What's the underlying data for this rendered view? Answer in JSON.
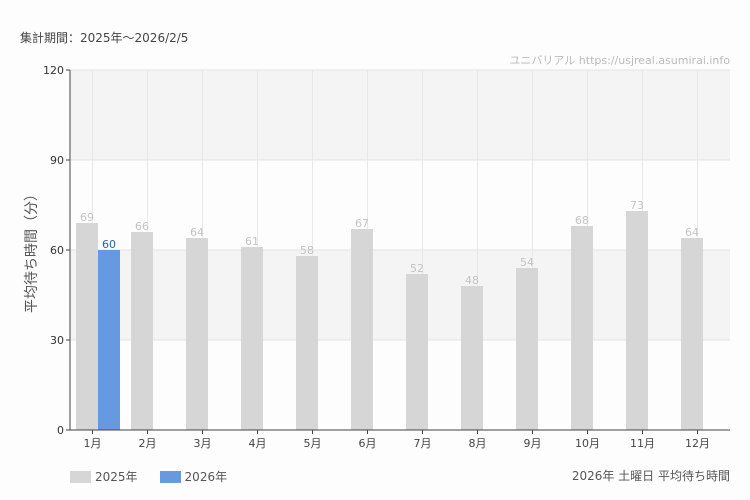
{
  "header": {
    "period": "集計期間：2025年～2026/2/5",
    "credit": "ユニバリアル https://usjreal.asumirai.info"
  },
  "footer": {
    "title": "2026年 土曜日 平均待ち時間"
  },
  "chart_data": {
    "type": "bar",
    "title": "2026年 土曜日 平均待ち時間",
    "ylabel": "平均待ち時間（分）",
    "xlabel": "",
    "ylim": [
      0,
      120
    ],
    "yticks": [
      "0",
      "30",
      "60",
      "90",
      "120"
    ],
    "categories": [
      "1月",
      "2月",
      "3月",
      "4月",
      "5月",
      "6月",
      "7月",
      "8月",
      "9月",
      "10月",
      "11月",
      "12月"
    ],
    "series": [
      {
        "name": "2025年",
        "color": "#d5d6d5",
        "label_color": "#c4c4c4",
        "values": [
          69,
          66,
          64,
          61,
          58,
          67,
          52,
          48,
          54,
          68,
          73,
          64
        ]
      },
      {
        "name": "2026年",
        "color": "#6699e0",
        "label_color": "#2a5fb0",
        "values": [
          60,
          null,
          null,
          null,
          null,
          null,
          null,
          null,
          null,
          null,
          null,
          null
        ]
      }
    ],
    "legend": "bottom-left",
    "grid": true
  }
}
